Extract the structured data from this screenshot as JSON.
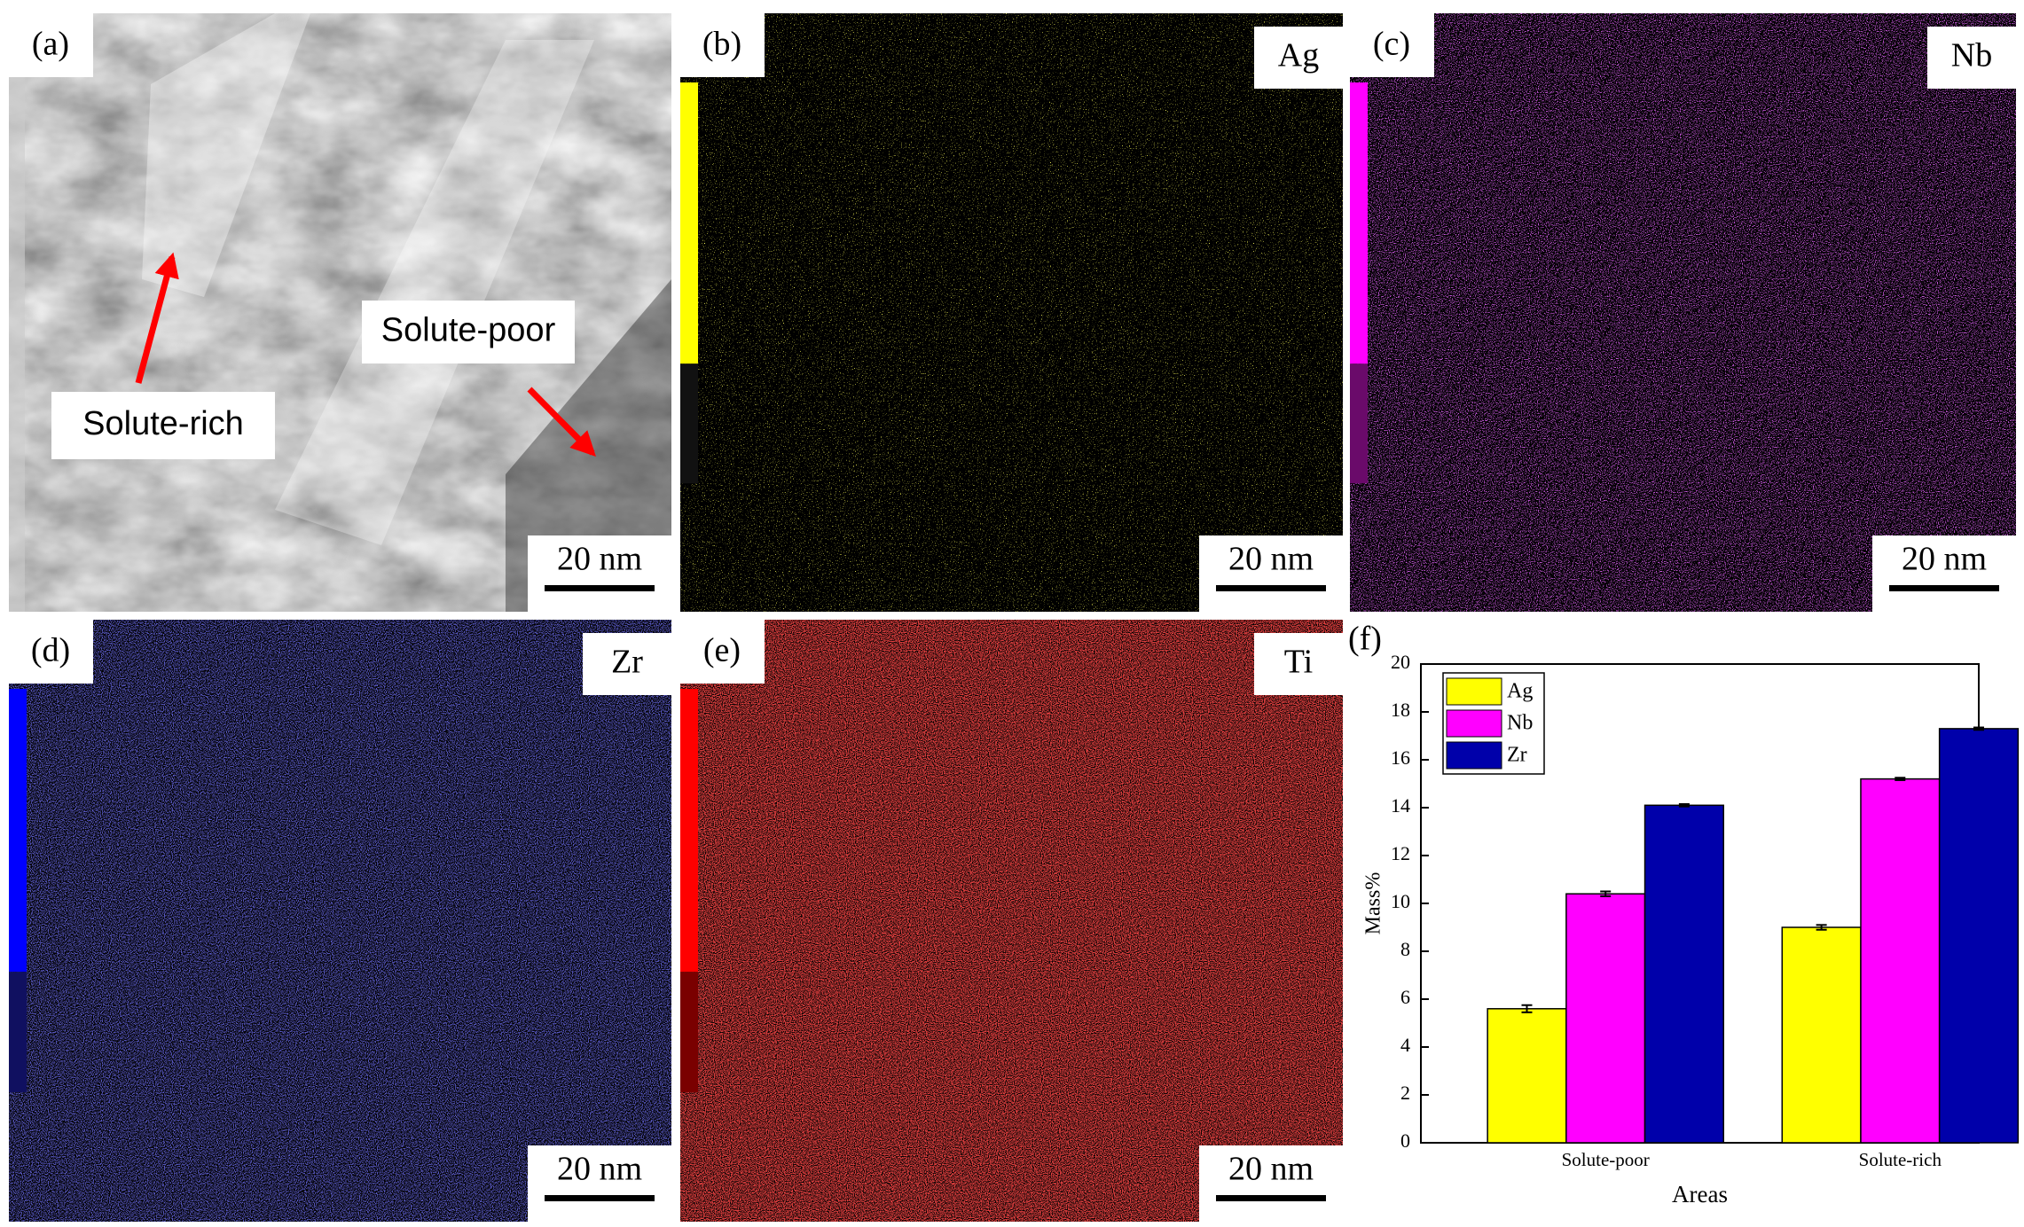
{
  "panels": [
    {
      "label": "(a)",
      "annotations": [
        "Solute-poor",
        "Solute-rich"
      ],
      "scale_bar": "20 nm"
    },
    {
      "label": "(b)",
      "element": "Ag",
      "scale_bar": "20 nm"
    },
    {
      "label": "(c)",
      "element": "Nb",
      "scale_bar": "20 nm"
    },
    {
      "label": "(d)",
      "element": "Zr",
      "scale_bar": "20 nm"
    },
    {
      "label": "(e)",
      "element": "Ti",
      "scale_bar": "20 nm"
    }
  ],
  "chart_data": {
    "type": "bar",
    "panel_label": "(f)",
    "x_label": "Areas",
    "y_label": "Mass%",
    "categories": [
      "Solute-poor",
      "Solute-rich"
    ],
    "series": [
      {
        "name": "Ag",
        "color": "#ffff00",
        "values": [
          5.6,
          9.0
        ],
        "errors": [
          0.15,
          0.1
        ]
      },
      {
        "name": "Nb",
        "color": "#ff00ff",
        "values": [
          10.4,
          15.2
        ],
        "errors": [
          0.1,
          0.05
        ]
      },
      {
        "name": "Zr",
        "color": "#0000aa",
        "values": [
          14.1,
          17.3
        ],
        "errors": [
          0.05,
          0.05
        ]
      }
    ],
    "ylim": [
      0,
      20
    ],
    "yticks": [
      0,
      2,
      4,
      6,
      8,
      10,
      12,
      14,
      16,
      18,
      20
    ],
    "legend": "upper-left"
  }
}
